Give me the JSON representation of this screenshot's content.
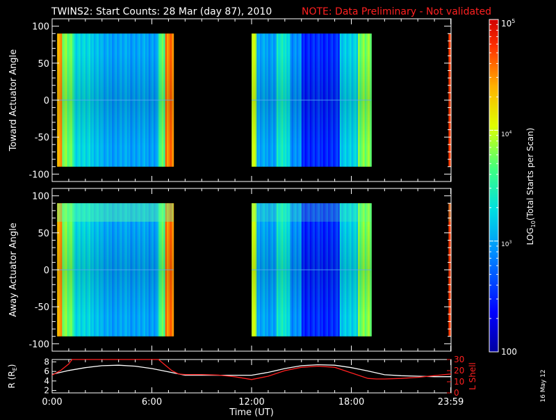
{
  "header": {
    "title": "TWINS2: Start Counts: 28 Mar (day  87), 2010",
    "note": "NOTE: Data Preliminary - Not validated",
    "note_color": "#ff2020"
  },
  "date_stamp": "16 May 12",
  "colors": {
    "background": "#000000",
    "axes": "#ffffff",
    "r_line": "#ffffff",
    "lshell_line": "#ff2020"
  },
  "chart_data": [
    {
      "type": "heatmap",
      "panel": "toward",
      "ylabel": "Toward Actuator Angle",
      "ylim": [
        -110,
        110
      ],
      "yticks": [
        -100,
        -50,
        0,
        50,
        100
      ],
      "xlim_hours": [
        0,
        24
      ],
      "data_yrange": [
        -90,
        90
      ],
      "data_gaps_hours": [
        [
          7.3,
          12.0
        ],
        [
          19.2,
          23.9
        ]
      ],
      "colormap": "rainbow",
      "color_scale": "log"
    },
    {
      "type": "heatmap",
      "panel": "away",
      "ylabel": "Away Actuator Angle",
      "ylim": [
        -110,
        110
      ],
      "yticks": [
        -100,
        -50,
        0,
        50,
        100
      ],
      "xlim_hours": [
        0,
        24
      ],
      "data_yrange": [
        -90,
        90
      ],
      "data_gaps_hours": [
        [
          7.3,
          12.0
        ],
        [
          19.2,
          23.9
        ]
      ],
      "colormap": "rainbow",
      "color_scale": "log"
    },
    {
      "type": "line",
      "panel": "orbit",
      "xlabel": "Time (UT)",
      "x_tick_labels": [
        "0:00",
        "6:00",
        "12:00",
        "18:00",
        "23:59"
      ],
      "x_tick_hours": [
        0,
        6,
        12,
        18,
        23.98
      ],
      "ylabel_left_prefix": "R (R",
      "ylabel_left_sub": "E",
      "ylabel_left_suffix": ")",
      "ylim_left": [
        1.5,
        8.5
      ],
      "yticks_left": [
        2,
        4,
        6,
        8
      ],
      "ylabel_right": "L Shell",
      "ylim_right": [
        0,
        30
      ],
      "yticks_right": [
        0,
        10,
        20,
        30
      ],
      "series": [
        {
          "axis": "left",
          "x": [
            0,
            1,
            2,
            3,
            4,
            5,
            6,
            7,
            8,
            9,
            10,
            11,
            12,
            13,
            14,
            15,
            16,
            17,
            18,
            19,
            20,
            21,
            22,
            23,
            24
          ],
          "y": [
            5.4,
            6.2,
            6.8,
            7.2,
            7.3,
            7.1,
            6.6,
            5.9,
            5.2,
            5.2,
            5.2,
            5.2,
            5.2,
            5.8,
            6.6,
            7.2,
            7.4,
            7.3,
            6.8,
            6.1,
            5.3,
            5.1,
            5.0,
            4.9,
            4.9
          ]
        },
        {
          "axis": "right",
          "x": [
            0,
            0.5,
            1,
            1.2,
            6.4,
            6.8,
            7.2,
            7.6,
            8,
            9,
            10,
            11,
            12,
            13,
            14,
            15,
            16,
            17,
            18,
            19,
            19.5,
            20,
            21,
            22,
            23,
            24
          ],
          "y": [
            16,
            20,
            26,
            30,
            30,
            25,
            20,
            17,
            16.5,
            16.5,
            16,
            14.5,
            12,
            15,
            20,
            23,
            24,
            23,
            18,
            13,
            12.5,
            12.5,
            13,
            14,
            15.5,
            17
          ]
        }
      ]
    }
  ],
  "colorbar": {
    "label_prefix": "LOG",
    "label_sub": "10",
    "label_suffix": "(Total Starts per Scan)",
    "tick_100": "100",
    "tick_base": "10",
    "exp_3": "3",
    "exp_4": "4",
    "exp_5": "5",
    "range": [
      100,
      100000
    ],
    "scale": "log"
  }
}
